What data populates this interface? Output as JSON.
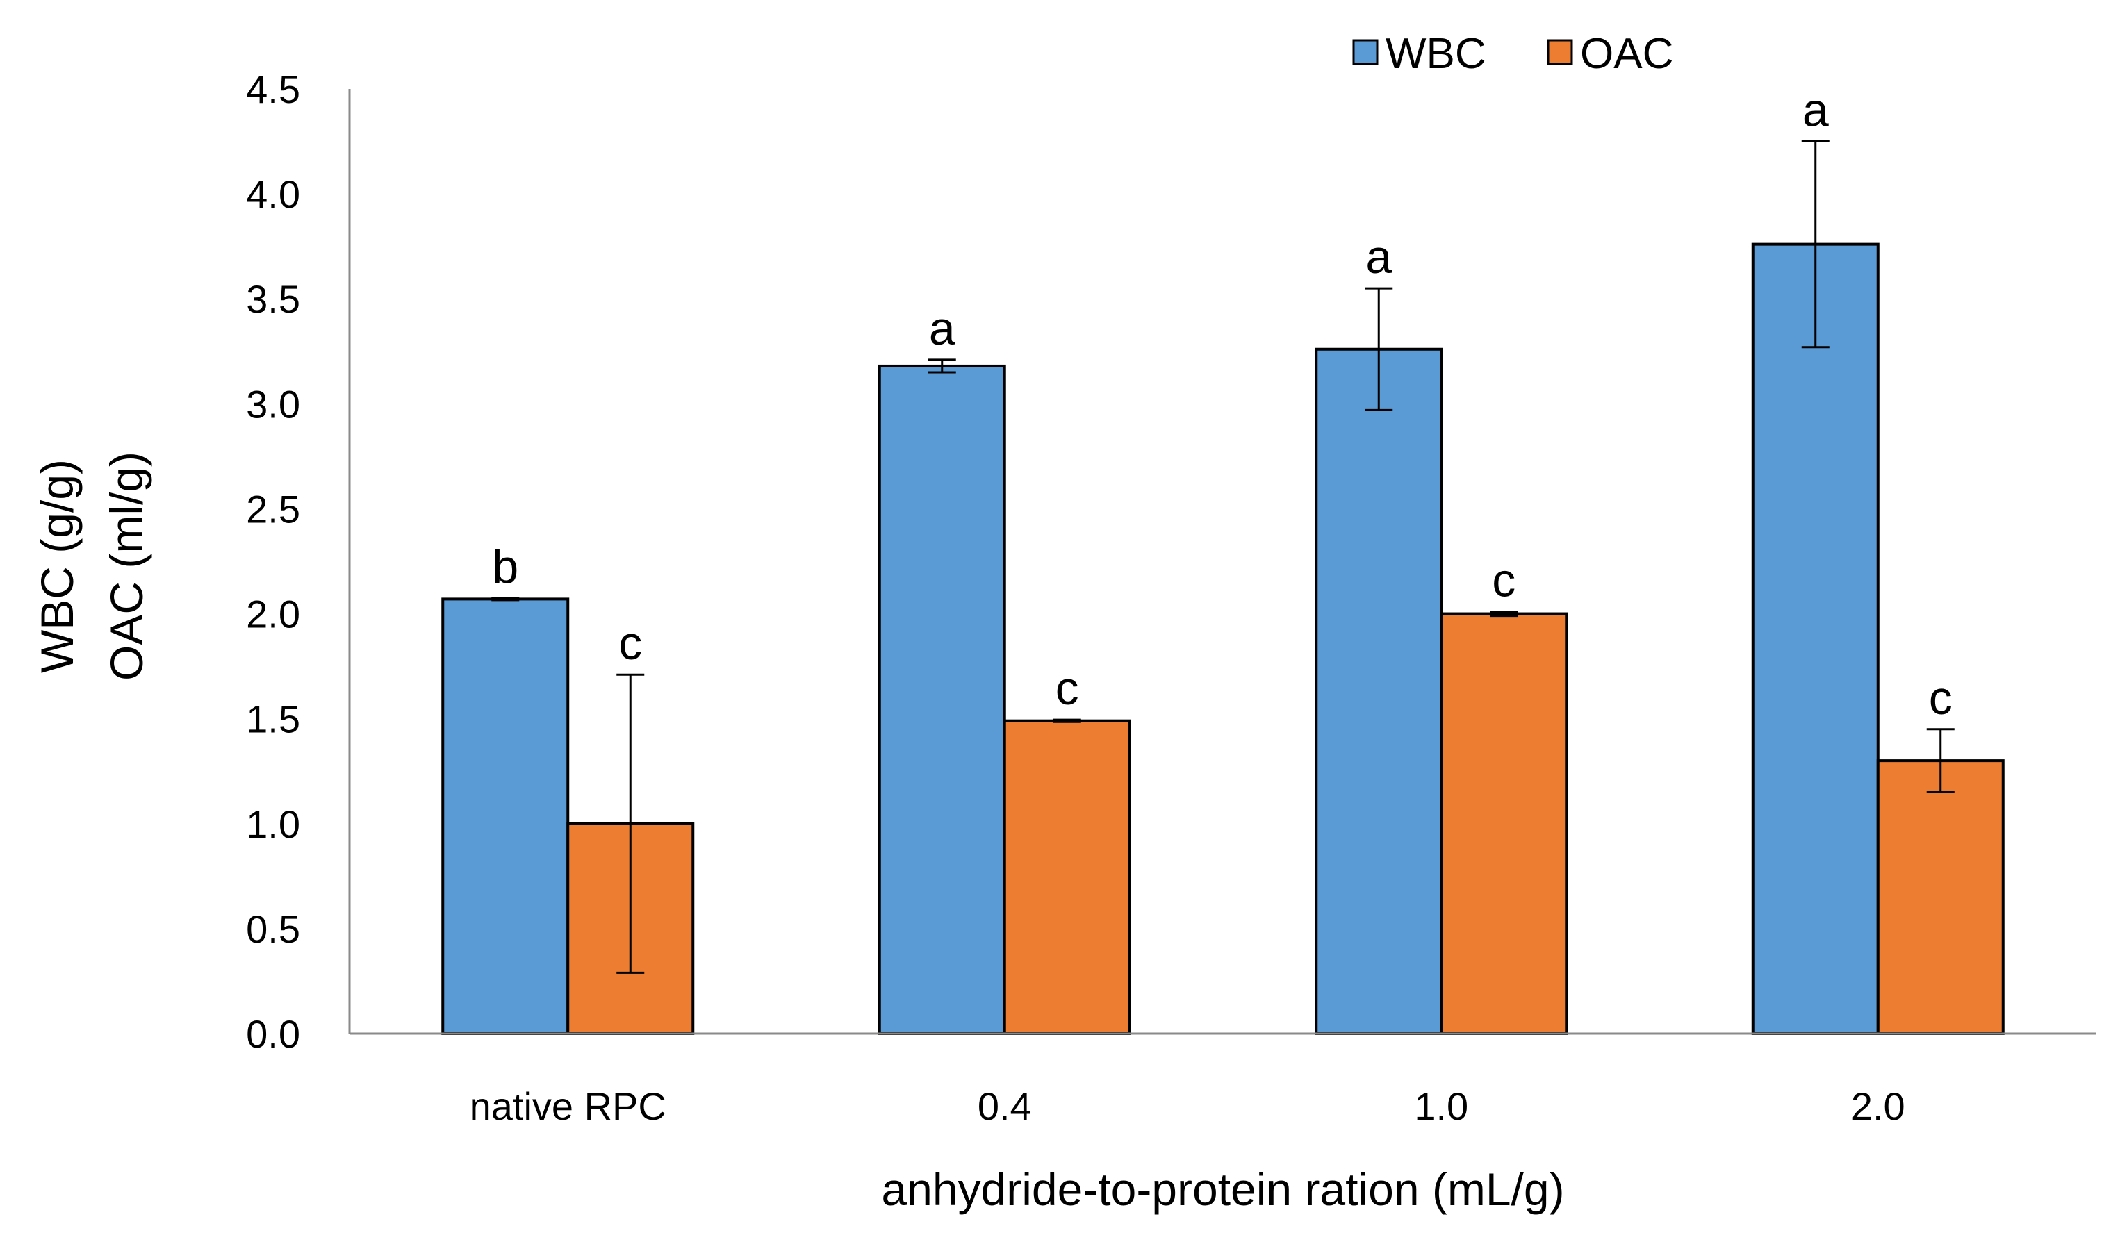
{
  "chart_data": {
    "type": "bar",
    "title": "",
    "xlabel": "anhydride-to-protein ration (mL/g)",
    "ylabel_lines": [
      "WBC (g/g)",
      "OAC (ml/g)"
    ],
    "ylim": [
      0,
      4.5
    ],
    "ytick_values": [
      0,
      0.5,
      1.0,
      1.5,
      2.0,
      2.5,
      3.0,
      3.5,
      4.0,
      4.5
    ],
    "ytick_labels": [
      "0.0",
      "0.5",
      "1.0",
      "1.5",
      "2.0",
      "2.5",
      "3.0",
      "3.5",
      "4.0",
      "4.5"
    ],
    "categories": [
      "native RPC",
      "0.4",
      "1.0",
      "2.0"
    ],
    "legend_position": "top-right",
    "series": [
      {
        "name": "WBC",
        "color": "#5B9BD5",
        "values": [
          2.07,
          3.18,
          3.26,
          3.76
        ],
        "errors": [
          0.005,
          0.03,
          0.29,
          0.49
        ],
        "letters": [
          "b",
          "a",
          "a",
          "a"
        ]
      },
      {
        "name": "OAC",
        "color": "#ED7D31",
        "values": [
          1.0,
          1.49,
          2.0,
          1.3
        ],
        "errors": [
          0.71,
          0.005,
          0.01,
          0.15
        ],
        "letters": [
          "c",
          "c",
          "c",
          "c"
        ]
      }
    ]
  }
}
